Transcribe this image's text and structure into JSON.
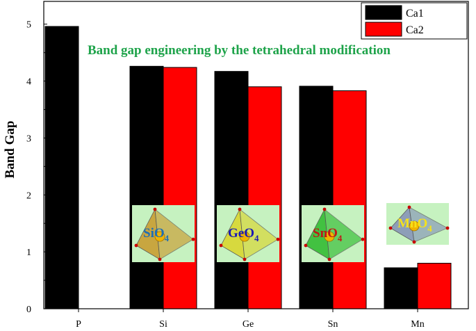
{
  "chart_data": {
    "type": "bar",
    "categories": [
      "P",
      "Si",
      "Ge",
      "Sn",
      "Mn"
    ],
    "series": [
      {
        "name": "Ca1",
        "color": "#000000",
        "values": [
          4.96,
          4.26,
          4.17,
          3.91,
          0.72
        ]
      },
      {
        "name": "Ca2",
        "color": "#ff0000",
        "values": [
          null,
          4.24,
          3.9,
          3.83,
          0.8
        ]
      }
    ],
    "title": "",
    "xlabel": "",
    "ylabel": "Band Gap",
    "ylim": [
      0,
      5.4
    ],
    "yticks": [
      "0",
      "1",
      "2",
      "3",
      "4",
      "5"
    ],
    "grid": false,
    "legend_position": "top-right",
    "annotation": {
      "text": "Band gap engineering by the tetrahedral modification",
      "color": "#1ea34a"
    },
    "insets": [
      {
        "category": "Si",
        "label": "SiO",
        "subscript": "4",
        "label_color": "#1f6fb5",
        "tetra_color": "#c9a23a",
        "bg": "#c6f2c0",
        "icon": "sio4-tetrahedron-icon"
      },
      {
        "category": "Ge",
        "label": "GeO",
        "subscript": "4",
        "label_color": "#1a1ab5",
        "tetra_color": "#d8d838",
        "bg": "#c6f2c0",
        "icon": "geo4-tetrahedron-icon"
      },
      {
        "category": "Sn",
        "label": "SnO",
        "subscript": "4",
        "label_color": "#c01818",
        "tetra_color": "#3bbf3b",
        "bg": "#c6f2c0",
        "icon": "sno4-tetrahedron-icon"
      },
      {
        "category": "Mn",
        "label": "MnO",
        "subscript": "4",
        "label_color": "#f5e21b",
        "tetra_color": "#8a9ab8",
        "bg": "#c6f2c0",
        "icon": "mno4-tetrahedron-icon"
      }
    ]
  }
}
